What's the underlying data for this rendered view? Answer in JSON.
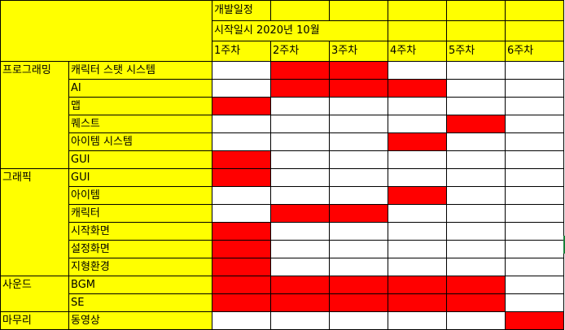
{
  "title": "개발일정",
  "start": "시작일시 2020년 10월",
  "weeks": [
    "1주차",
    "2주차",
    "3주차",
    "4주차",
    "5주차",
    "6주차"
  ],
  "rows": [
    {
      "category": "프로그래밍",
      "task": "캐릭터 스탯 시스템",
      "weeks": [
        0,
        1,
        1,
        0,
        0,
        0
      ]
    },
    {
      "category": "",
      "task": "AI",
      "weeks": [
        0,
        1,
        1,
        1,
        0,
        0
      ]
    },
    {
      "category": "",
      "task": "맵",
      "weeks": [
        1,
        0,
        0,
        0,
        0,
        0
      ]
    },
    {
      "category": "",
      "task": "퀘스트",
      "weeks": [
        0,
        0,
        0,
        0,
        1,
        0
      ]
    },
    {
      "category": "",
      "task": "아이템 시스템",
      "weeks": [
        0,
        0,
        0,
        1,
        0,
        0
      ]
    },
    {
      "category": "",
      "task": "GUI",
      "weeks": [
        1,
        0,
        0,
        0,
        0,
        0
      ]
    },
    {
      "category": "그래픽",
      "task": "GUI",
      "weeks": [
        1,
        0,
        0,
        0,
        0,
        0
      ]
    },
    {
      "category": "",
      "task": "아이템",
      "weeks": [
        0,
        0,
        0,
        1,
        0,
        0
      ]
    },
    {
      "category": "",
      "task": "캐릭터",
      "weeks": [
        0,
        1,
        1,
        0,
        0,
        0
      ]
    },
    {
      "category": "",
      "task": "시작화면",
      "weeks": [
        1,
        0,
        0,
        0,
        0,
        0
      ]
    },
    {
      "category": "",
      "task": "설정화면",
      "weeks": [
        1,
        0,
        0,
        0,
        0,
        0
      ]
    },
    {
      "category": "",
      "task": "지형환경",
      "weeks": [
        1,
        0,
        0,
        0,
        0,
        0
      ]
    },
    {
      "category": "사운드",
      "task": "BGM",
      "weeks": [
        1,
        1,
        1,
        1,
        1,
        0
      ]
    },
    {
      "category": "",
      "task": "SE",
      "weeks": [
        1,
        1,
        1,
        1,
        1,
        0
      ]
    },
    {
      "category": "마무리",
      "task": "동영상",
      "weeks": [
        0,
        0,
        0,
        0,
        0,
        1
      ]
    }
  ],
  "colors": {
    "header": "#ffff00",
    "scheduled": "#ff0000",
    "empty": "#ffffff"
  }
}
